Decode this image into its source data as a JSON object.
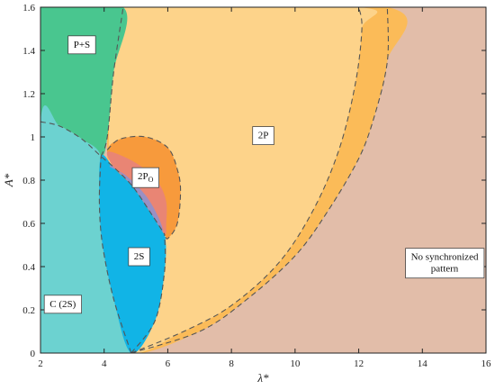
{
  "chart_data": {
    "type": "area",
    "xlabel": "λ*",
    "ylabel": "A*",
    "xlim": [
      2,
      16
    ],
    "ylim": [
      0,
      1.6
    ],
    "xticks": [
      2,
      4,
      6,
      8,
      10,
      12,
      14,
      16
    ],
    "yticks": [
      0,
      0.2,
      0.4,
      0.6,
      0.8,
      1.0,
      1.2,
      1.4,
      1.6
    ],
    "xtick_labels": [
      "2",
      "4",
      "6",
      "8",
      "10",
      "12",
      "14",
      "16"
    ],
    "ytick_labels": [
      "0",
      "0.2",
      "0.4",
      "0.6",
      "0.8",
      "1",
      "1.2",
      "1.4",
      "1.6"
    ],
    "grid": false,
    "background_color": "#e2bda9",
    "regions": [
      {
        "name": "No synchronized pattern",
        "label": "No synchronized pattern",
        "label_lines": [
          "No synchronized",
          "pattern"
        ],
        "label_at": [
          14.7,
          0.42
        ],
        "color": "#e2bda9",
        "polygon": []
      },
      {
        "name": "outer-2P-band",
        "label": "",
        "color": "#fbbb58",
        "polygon": [
          [
            4.85,
            0
          ],
          [
            7,
            0.1
          ],
          [
            8.5,
            0.25
          ],
          [
            10,
            0.45
          ],
          [
            11,
            0.65
          ],
          [
            12,
            0.9
          ],
          [
            12.5,
            1.1
          ],
          [
            12.9,
            1.35
          ],
          [
            12.9,
            1.6
          ],
          [
            4.6,
            1.6
          ],
          [
            4.1,
            1.0
          ],
          [
            4.35,
            0.2
          ]
        ]
      },
      {
        "name": "2P",
        "label": "2P",
        "label_at": [
          9.0,
          1.01
        ],
        "color": "#fdd38a",
        "polygon": [
          [
            4.85,
            0
          ],
          [
            6.5,
            0.1
          ],
          [
            8,
            0.22
          ],
          [
            9.5,
            0.42
          ],
          [
            10.6,
            0.67
          ],
          [
            11.4,
            0.95
          ],
          [
            11.9,
            1.25
          ],
          [
            12.1,
            1.5
          ],
          [
            12.0,
            1.6
          ],
          [
            4.6,
            1.6
          ],
          [
            4.15,
            1.0
          ],
          [
            4.35,
            0.2
          ]
        ]
      },
      {
        "name": "P+S",
        "label": "P+S",
        "label_at": [
          3.3,
          1.43
        ],
        "color": "#49c68f",
        "polygon": [
          [
            2,
            1.6
          ],
          [
            4.6,
            1.6
          ],
          [
            4.3,
            1.3
          ],
          [
            4.1,
            1.0
          ],
          [
            3.9,
            0.91
          ],
          [
            3.3,
            0.99
          ],
          [
            2.6,
            1.05
          ],
          [
            2,
            1.07
          ]
        ]
      },
      {
        "name": "C (2S)",
        "label": "C (2S)",
        "label_at": [
          2.7,
          0.23
        ],
        "color": "#6cd2d0",
        "polygon": [
          [
            2,
            0
          ],
          [
            4.85,
            0
          ],
          [
            4.3,
            0.25
          ],
          [
            3.95,
            0.5
          ],
          [
            3.85,
            0.7
          ],
          [
            3.9,
            0.91
          ],
          [
            3.3,
            0.99
          ],
          [
            2.6,
            1.05
          ],
          [
            2,
            1.07
          ]
        ]
      },
      {
        "name": "2S",
        "label": "2S",
        "label_at": [
          5.1,
          0.45
        ],
        "color": "#11b4e6",
        "polygon": [
          [
            4.85,
            0
          ],
          [
            4.3,
            0.25
          ],
          [
            3.95,
            0.5
          ],
          [
            3.85,
            0.7
          ],
          [
            3.9,
            0.91
          ],
          [
            4.3,
            0.86
          ],
          [
            4.9,
            0.77
          ],
          [
            5.5,
            0.64
          ],
          [
            5.9,
            0.55
          ],
          [
            5.9,
            0.38
          ],
          [
            5.6,
            0.15
          ]
        ]
      },
      {
        "name": "2Po-outer",
        "label": "",
        "color": "#f79a3c",
        "polygon": [
          [
            4.1,
            0.94
          ],
          [
            4.5,
            0.99
          ],
          [
            5.3,
            1.0
          ],
          [
            6.0,
            0.95
          ],
          [
            6.3,
            0.85
          ],
          [
            6.4,
            0.75
          ],
          [
            6.3,
            0.6
          ],
          [
            6.0,
            0.53
          ],
          [
            5.9,
            0.55
          ],
          [
            5.5,
            0.64
          ],
          [
            4.9,
            0.77
          ],
          [
            4.3,
            0.86
          ]
        ]
      },
      {
        "name": "2Po",
        "label": "2P",
        "label_sub": "O",
        "label_at": [
          5.3,
          0.82
        ],
        "color": "#e98574",
        "polygon": [
          [
            4.1,
            0.93
          ],
          [
            4.6,
            0.91
          ],
          [
            5.2,
            0.86
          ],
          [
            5.7,
            0.79
          ],
          [
            5.95,
            0.7
          ],
          [
            5.95,
            0.6
          ],
          [
            5.9,
            0.55
          ],
          [
            5.5,
            0.64
          ],
          [
            4.9,
            0.77
          ],
          [
            4.3,
            0.86
          ]
        ]
      },
      {
        "name": "2Po-inner",
        "label": "",
        "color": "#9990c4",
        "polygon": [
          [
            4.2,
            0.86
          ],
          [
            4.7,
            0.82
          ],
          [
            5.3,
            0.73
          ],
          [
            5.7,
            0.63
          ],
          [
            5.85,
            0.56
          ],
          [
            5.5,
            0.64
          ],
          [
            4.9,
            0.77
          ],
          [
            4.3,
            0.86
          ]
        ]
      }
    ],
    "boundaries": [
      [
        [
          2,
          1.07
        ],
        [
          2.6,
          1.05
        ],
        [
          3.3,
          0.99
        ],
        [
          3.9,
          0.91
        ],
        [
          4.3,
          0.86
        ],
        [
          4.9,
          0.77
        ],
        [
          5.5,
          0.64
        ],
        [
          5.9,
          0.55
        ]
      ],
      [
        [
          4.85,
          0
        ],
        [
          4.3,
          0.25
        ],
        [
          3.95,
          0.5
        ],
        [
          3.85,
          0.7
        ],
        [
          3.9,
          0.91
        ]
      ],
      [
        [
          4.85,
          0
        ],
        [
          5.6,
          0.15
        ],
        [
          5.9,
          0.38
        ],
        [
          5.9,
          0.55
        ]
      ],
      [
        [
          3.9,
          0.91
        ],
        [
          4.1,
          1.0
        ],
        [
          4.3,
          1.3
        ],
        [
          4.6,
          1.6
        ]
      ],
      [
        [
          4.1,
          0.94
        ],
        [
          4.5,
          0.99
        ],
        [
          5.3,
          1.0
        ],
        [
          6.0,
          0.95
        ],
        [
          6.3,
          0.85
        ],
        [
          6.4,
          0.75
        ],
        [
          6.3,
          0.6
        ],
        [
          6.0,
          0.53
        ],
        [
          5.9,
          0.55
        ]
      ],
      [
        [
          4.85,
          0
        ],
        [
          6.5,
          0.1
        ],
        [
          8,
          0.22
        ],
        [
          9.5,
          0.42
        ],
        [
          10.6,
          0.67
        ],
        [
          11.4,
          0.95
        ],
        [
          11.9,
          1.25
        ],
        [
          12.1,
          1.5
        ],
        [
          12.0,
          1.6
        ]
      ],
      [
        [
          4.85,
          0
        ],
        [
          7,
          0.1
        ],
        [
          8.5,
          0.25
        ],
        [
          10,
          0.45
        ],
        [
          11,
          0.65
        ],
        [
          12,
          0.9
        ],
        [
          12.5,
          1.1
        ],
        [
          12.9,
          1.35
        ],
        [
          12.9,
          1.6
        ]
      ]
    ]
  }
}
